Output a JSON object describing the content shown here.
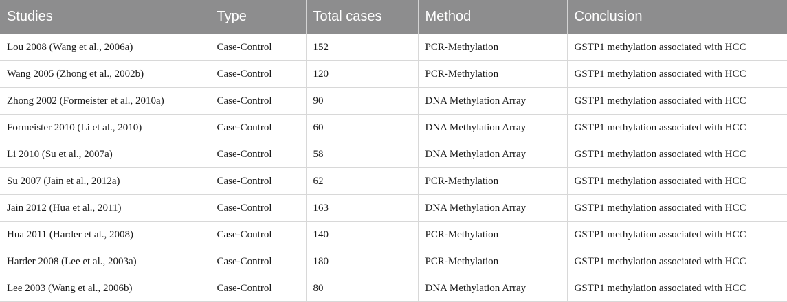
{
  "table": {
    "headers": [
      "Studies",
      "Type",
      "Total cases",
      "Method",
      "Conclusion"
    ],
    "rows": [
      {
        "study": "Lou 2008 (Wang et al., 2006a)",
        "type": "Case-Control",
        "total_cases": "152",
        "method": "PCR-Methylation",
        "conclusion": "GSTP1 methylation associated with HCC"
      },
      {
        "study": "Wang 2005 (Zhong et al., 2002b)",
        "type": "Case-Control",
        "total_cases": "120",
        "method": "PCR-Methylation",
        "conclusion": "GSTP1 methylation associated with HCC"
      },
      {
        "study": "Zhong 2002 (Formeister et al., 2010a)",
        "type": "Case-Control",
        "total_cases": "90",
        "method": "DNA Methylation Array",
        "conclusion": "GSTP1 methylation associated with HCC"
      },
      {
        "study": "Formeister 2010 (Li et al., 2010)",
        "type": "Case-Control",
        "total_cases": "60",
        "method": "DNA Methylation Array",
        "conclusion": "GSTP1 methylation associated with HCC"
      },
      {
        "study": "Li 2010 (Su et al., 2007a)",
        "type": "Case-Control",
        "total_cases": "58",
        "method": "DNA Methylation Array",
        "conclusion": "GSTP1 methylation associated with HCC"
      },
      {
        "study": "Su 2007 (Jain et al., 2012a)",
        "type": "Case-Control",
        "total_cases": "62",
        "method": "PCR-Methylation",
        "conclusion": "GSTP1 methylation associated with HCC"
      },
      {
        "study": "Jain 2012 (Hua et al., 2011)",
        "type": "Case-Control",
        "total_cases": "163",
        "method": "DNA Methylation Array",
        "conclusion": "GSTP1 methylation associated with HCC"
      },
      {
        "study": "Hua 2011 (Harder et al., 2008)",
        "type": "Case-Control",
        "total_cases": "140",
        "method": "PCR-Methylation",
        "conclusion": "GSTP1 methylation associated with HCC"
      },
      {
        "study": "Harder 2008 (Lee et al., 2003a)",
        "type": "Case-Control",
        "total_cases": "180",
        "method": "PCR-Methylation",
        "conclusion": "GSTP1 methylation associated with HCC"
      },
      {
        "study": "Lee 2003 (Wang et al., 2006b)",
        "type": "Case-Control",
        "total_cases": "80",
        "method": "DNA Methylation Array",
        "conclusion": "GSTP1 methylation associated with HCC"
      }
    ]
  }
}
